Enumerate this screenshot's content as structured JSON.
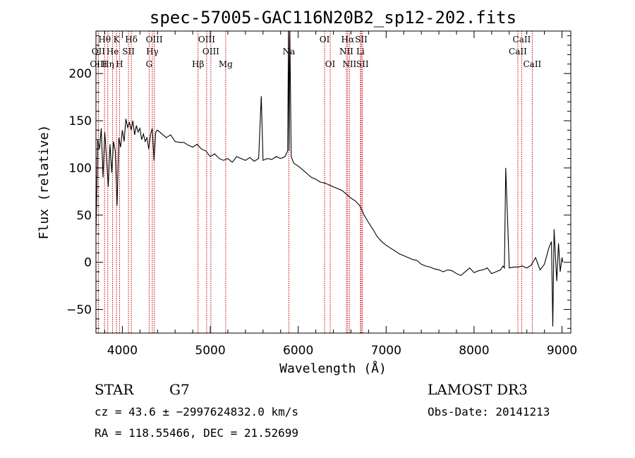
{
  "chart_data": {
    "type": "line",
    "title": "spec-57005-GAC116N20B2_sp12-202.fits",
    "xlabel": "Wavelength (Å)",
    "ylabel": "Flux (relative)",
    "xlim": [
      3700,
      9100
    ],
    "ylim": [
      -75,
      245
    ],
    "x_ticks": [
      4000,
      5000,
      6000,
      7000,
      8000,
      9000
    ],
    "y_ticks": [
      -50,
      0,
      50,
      100,
      150,
      200
    ],
    "x_tick_labels": [
      "4000",
      "5000",
      "6000",
      "7000",
      "8000",
      "9000"
    ],
    "y_tick_labels": [
      "−50",
      "0",
      "50",
      "100",
      "150",
      "200"
    ],
    "grid": false,
    "series": [
      {
        "color": "#000000",
        "x": [
          3700,
          3720,
          3740,
          3760,
          3780,
          3800,
          3820,
          3840,
          3860,
          3880,
          3900,
          3920,
          3940,
          3960,
          3980,
          4000,
          4020,
          4040,
          4060,
          4080,
          4100,
          4120,
          4140,
          4160,
          4180,
          4200,
          4220,
          4240,
          4260,
          4280,
          4300,
          4320,
          4340,
          4360,
          4380,
          4400,
          4450,
          4500,
          4550,
          4600,
          4650,
          4700,
          4750,
          4800,
          4850,
          4900,
          4950,
          5000,
          5050,
          5100,
          5150,
          5200,
          5250,
          5300,
          5350,
          5400,
          5450,
          5500,
          5550,
          5580,
          5600,
          5650,
          5700,
          5750,
          5800,
          5850,
          5880,
          5890,
          5896,
          5905,
          5920,
          5950,
          6000,
          6050,
          6100,
          6150,
          6200,
          6250,
          6300,
          6350,
          6400,
          6450,
          6500,
          6550,
          6600,
          6650,
          6700,
          6750,
          6800,
          6850,
          6900,
          6950,
          7000,
          7050,
          7100,
          7150,
          7200,
          7250,
          7300,
          7350,
          7400,
          7450,
          7500,
          7550,
          7600,
          7650,
          7700,
          7750,
          7800,
          7850,
          7900,
          7950,
          8000,
          8050,
          8100,
          8150,
          8200,
          8250,
          8300,
          8330,
          8345,
          8360,
          8400,
          8450,
          8500,
          8550,
          8600,
          8650,
          8700,
          8750,
          8800,
          8850,
          8880,
          8895,
          8910,
          8940,
          8960,
          8980,
          9000,
          9010
        ],
        "y": [
          30,
          130,
          120,
          142,
          90,
          138,
          110,
          80,
          125,
          95,
          128,
          118,
          60,
          132,
          122,
          140,
          128,
          152,
          143,
          148,
          140,
          150,
          135,
          145,
          138,
          142,
          130,
          136,
          128,
          132,
          120,
          135,
          142,
          108,
          138,
          140,
          136,
          132,
          135,
          128,
          127,
          127,
          124,
          122,
          125,
          120,
          118,
          112,
          115,
          110,
          108,
          110,
          106,
          112,
          110,
          108,
          111,
          107,
          110,
          176,
          108,
          110,
          109,
          112,
          110,
          112,
          118,
          245,
          118,
          245,
          112,
          105,
          102,
          98,
          94,
          90,
          88,
          85,
          84,
          82,
          80,
          78,
          76,
          72,
          68,
          65,
          60,
          50,
          42,
          35,
          27,
          22,
          18,
          15,
          12,
          9,
          7,
          5,
          3,
          2,
          -2,
          -4,
          -5,
          -7,
          -8,
          -10,
          -8,
          -9,
          -12,
          -14,
          -10,
          -6,
          -11,
          -9,
          -8,
          -6,
          -12,
          -10,
          -8,
          -4,
          -6,
          100,
          -6,
          -5,
          -5,
          -4,
          -6,
          -3,
          5,
          -8,
          -2,
          15,
          22,
          -68,
          35,
          -20,
          20,
          -10,
          5,
          0
        ]
      }
    ],
    "line_markers": [
      {
        "label": "Hθ",
        "wavelength": 3798,
        "row": 0
      },
      {
        "label": "OII",
        "wavelength": 3727,
        "row": 1
      },
      {
        "label": "OIII",
        "wavelength": 3727,
        "row": 2
      },
      {
        "label": "He",
        "wavelength": 3889,
        "row": 1
      },
      {
        "label": "Hη",
        "wavelength": 3835,
        "row": 2
      },
      {
        "label": "K",
        "wavelength": 3934,
        "row": 0
      },
      {
        "label": "H",
        "wavelength": 3968,
        "row": 2
      },
      {
        "label": "SII",
        "wavelength": 4070,
        "row": 1
      },
      {
        "label": "Hδ",
        "wavelength": 4102,
        "row": 0
      },
      {
        "label": "OIII",
        "wavelength": 4363,
        "row": 0
      },
      {
        "label": "Hγ",
        "wavelength": 4341,
        "row": 1
      },
      {
        "label": "G",
        "wavelength": 4305,
        "row": 2
      },
      {
        "label": "Hβ",
        "wavelength": 4861,
        "row": 2
      },
      {
        "label": "OIII",
        "wavelength": 4959,
        "row": 0
      },
      {
        "label": "OIII",
        "wavelength": 5007,
        "row": 1
      },
      {
        "label": "Mg",
        "wavelength": 5175,
        "row": 2
      },
      {
        "label": "Na",
        "wavelength": 5894,
        "row": 1
      },
      {
        "label": "OI",
        "wavelength": 6300,
        "row": 0
      },
      {
        "label": "OI",
        "wavelength": 6364,
        "row": 2
      },
      {
        "label": "Hα",
        "wavelength": 6563,
        "row": 0
      },
      {
        "label": "NII",
        "wavelength": 6548,
        "row": 1
      },
      {
        "label": "NII",
        "wavelength": 6583,
        "row": 2
      },
      {
        "label": "SII",
        "wavelength": 6717,
        "row": 0
      },
      {
        "label": "Li",
        "wavelength": 6708,
        "row": 1
      },
      {
        "label": "SII",
        "wavelength": 6731,
        "row": 2
      },
      {
        "label": "CaII",
        "wavelength": 8542,
        "row": 0
      },
      {
        "label": "CaII",
        "wavelength": 8498,
        "row": 1
      },
      {
        "label": "CaII",
        "wavelength": 8662,
        "row": 2
      }
    ],
    "marker_color": "#cc0000"
  },
  "footer": {
    "object_class": "STAR",
    "subclass": "G7",
    "survey": "LAMOST DR3",
    "cz": "cz = 43.6 ± −2997624832.0 km/s",
    "obs_date": "Obs-Date: 20141213",
    "coords": "RA = 118.55466, DEC =  21.52699"
  }
}
